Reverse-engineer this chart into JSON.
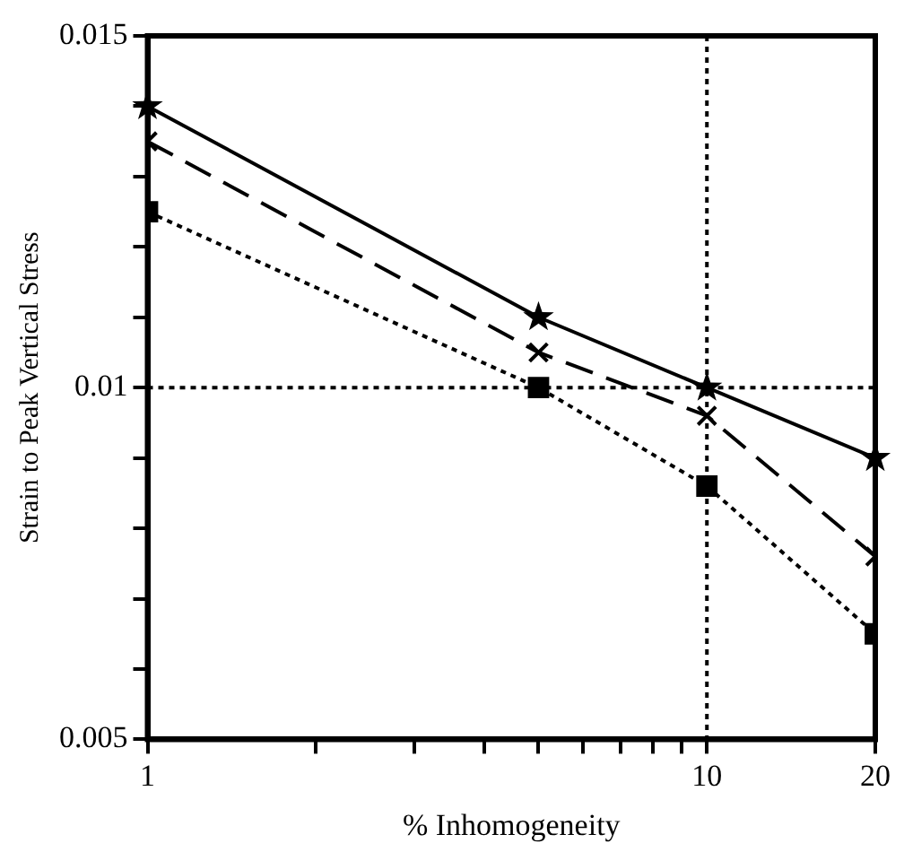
{
  "chart_data": {
    "type": "line",
    "xlabel": "% Inhomogeneity",
    "ylabel": "Strain to Peak Vertical Stress",
    "log": "x",
    "x": [
      1,
      5,
      10,
      20
    ],
    "xlim": [
      1,
      20
    ],
    "xticks": [
      1,
      {
        "value": 2,
        "label": null
      },
      {
        "value": 3,
        "label": null
      },
      {
        "value": 4,
        "label": null
      },
      {
        "value": 5,
        "label": null
      },
      {
        "value": 6,
        "label": null
      },
      {
        "value": 7,
        "label": null
      },
      {
        "value": 8,
        "label": null
      },
      {
        "value": 9,
        "label": null
      },
      10,
      20
    ],
    "ylim": [
      0.005,
      0.015
    ],
    "yticks": [
      0.005,
      {
        "value": 0.006,
        "label": null
      },
      {
        "value": 0.007,
        "label": null
      },
      {
        "value": 0.008,
        "label": null
      },
      {
        "value": 0.009,
        "label": null
      },
      0.01,
      {
        "value": 0.011,
        "label": null
      },
      {
        "value": 0.012,
        "label": null
      },
      {
        "value": 0.013,
        "label": null
      },
      {
        "value": 0.014,
        "label": null
      },
      0.015
    ],
    "series": [
      {
        "color": "#000000",
        "marker": "star",
        "line_style": "solid",
        "values": [
          0.014,
          0.011,
          0.01,
          0.009
        ]
      },
      {
        "color": "#000000",
        "marker": "cross",
        "line_style": "dashed",
        "values": [
          0.0135,
          0.0105,
          0.0096,
          0.0076
        ]
      },
      {
        "color": "#000000",
        "marker": "square",
        "line_style": "dotted",
        "values": [
          0.0125,
          0.01,
          0.0086,
          0.0065
        ]
      }
    ],
    "ref_lines": [
      {
        "axis": "x",
        "value": 10,
        "line_style": "dotted",
        "color": "#000000"
      },
      {
        "axis": "y",
        "value": 0.01,
        "line_style": "dotted",
        "color": "#000000"
      }
    ],
    "grid": false,
    "legend": false
  }
}
